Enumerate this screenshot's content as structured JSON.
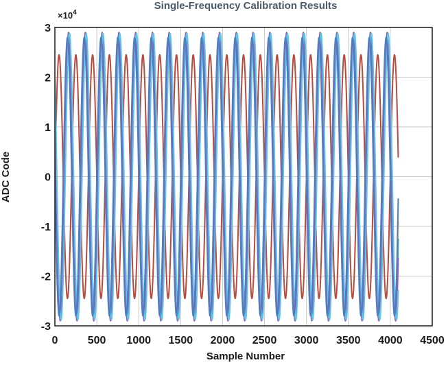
{
  "chart_data": {
    "type": "line",
    "title": "Single-Frequency Calibration Results",
    "xlabel": "Sample Number",
    "ylabel": "ADC Code",
    "y_multiplier_label": "×10",
    "y_multiplier_exponent": "4",
    "xlim": [
      0,
      4500
    ],
    "ylim": [
      -3,
      3
    ],
    "x_ticks": [
      0,
      500,
      1000,
      1500,
      2000,
      2500,
      3000,
      3500,
      4000,
      4500
    ],
    "x_tick_labels": [
      "0",
      "500",
      "1000",
      "1500",
      "2000",
      "2500",
      "3000",
      "3500",
      "4000",
      "4500"
    ],
    "y_ticks": [
      -3,
      -2,
      -1,
      0,
      1,
      2,
      3
    ],
    "y_tick_labels": [
      "-3",
      "-2",
      "-1",
      "0",
      "1",
      "2",
      "3"
    ],
    "grid": true,
    "legend": "none",
    "samples": 4096,
    "period_samples": 200,
    "series": [
      {
        "color": "#b94a3c",
        "amplitude": 2.45,
        "phase_cycles": 0.0
      },
      {
        "color": "#f0c04a",
        "amplitude": 2.65,
        "phase_cycles": 0.47
      },
      {
        "color": "#3f9e8c",
        "amplitude": 2.75,
        "phase_cycles": 0.45
      },
      {
        "color": "#9b59b6",
        "amplitude": 2.9,
        "phase_cycles": 0.43
      },
      {
        "color": "#5bc8e8",
        "amplitude": 2.88,
        "phase_cycles": 0.38
      },
      {
        "color": "#4a7fc1",
        "amplitude": 2.8,
        "phase_cycles": 0.5
      }
    ]
  }
}
